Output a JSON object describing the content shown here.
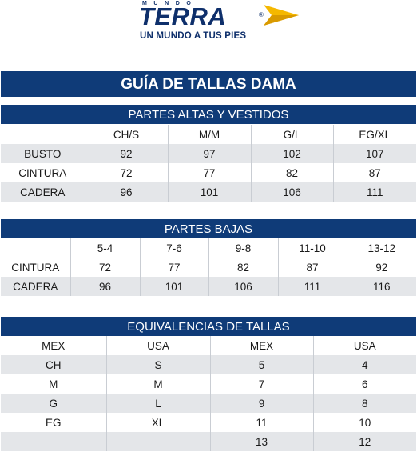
{
  "brand": {
    "top": "MUNDO",
    "name": "TERRA",
    "registered": "®",
    "tagline": "UN MUNDO A TUS PIES",
    "arrow_color": "#f5b800"
  },
  "colors": {
    "header_bg": "#0f3b78",
    "row_shade": "#e4e6e9"
  },
  "title": "GUÍA DE TALLAS DAMA",
  "tops": {
    "title": "PARTES ALTAS Y VESTIDOS",
    "headers": [
      "",
      "CH/S",
      "M/M",
      "G/L",
      "EG/XL"
    ],
    "rows": [
      [
        "BUSTO",
        "92",
        "97",
        "102",
        "107"
      ],
      [
        "CINTURA",
        "72",
        "77",
        "82",
        "87"
      ],
      [
        "CADERA",
        "96",
        "101",
        "106",
        "111"
      ]
    ]
  },
  "bottoms": {
    "title": "PARTES BAJAS",
    "headers": [
      "",
      "5-4",
      "7-6",
      "9-8",
      "11-10",
      "13-12"
    ],
    "rows": [
      [
        "CINTURA",
        "72",
        "77",
        "82",
        "87",
        "92"
      ],
      [
        "CADERA",
        "96",
        "101",
        "106",
        "111",
        "116"
      ]
    ]
  },
  "equivalences": {
    "title": "EQUIVALENCIAS DE TALLAS",
    "headers": [
      "MEX",
      "USA",
      "MEX",
      "USA"
    ],
    "rows": [
      [
        "CH",
        "S",
        "5",
        "4"
      ],
      [
        "M",
        "M",
        "7",
        "6"
      ],
      [
        "G",
        "L",
        "9",
        "8"
      ],
      [
        "EG",
        "XL",
        "11",
        "10"
      ],
      [
        "",
        "",
        "13",
        "12"
      ]
    ]
  }
}
